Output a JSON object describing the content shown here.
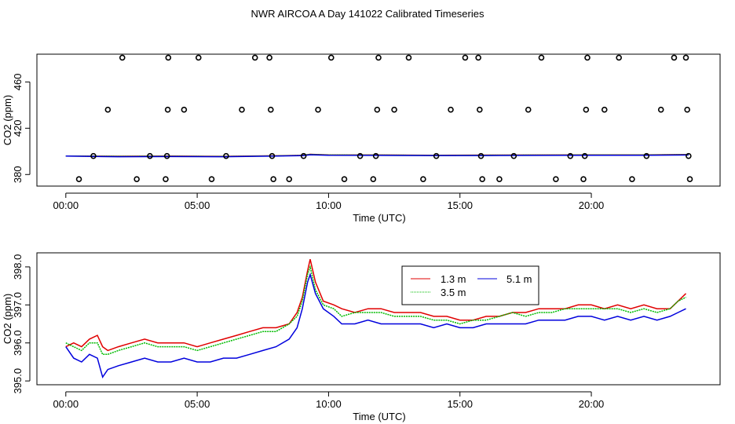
{
  "title": "NWR AIRCOA A  Day 141022  Calibrated Timeseries",
  "colors": {
    "red": "#e00000",
    "green": "#00bb00",
    "blue": "#0000dd"
  },
  "chart_data": [
    {
      "type": "scatter",
      "name": "top-panel",
      "xlabel": "Time (UTC)",
      "ylabel": "CO2 (ppm)",
      "xlim": [
        -1.1,
        24.9
      ],
      "ylim": [
        370,
        484
      ],
      "xticks": [
        0,
        5,
        10,
        15,
        20
      ],
      "xtick_labels": [
        "00:00",
        "05:00",
        "10:00",
        "15:00",
        "20:00"
      ],
      "yticks": [
        380,
        420,
        460
      ],
      "ytick_labels": [
        "380",
        "420",
        "460"
      ],
      "scatter_points": [
        [
          0.5,
          376
        ],
        [
          1.05,
          396
        ],
        [
          1.6,
          436
        ],
        [
          2.15,
          481
        ],
        [
          2.7,
          376
        ],
        [
          3.2,
          396
        ],
        [
          3.8,
          376
        ],
        [
          3.85,
          396
        ],
        [
          3.88,
          436
        ],
        [
          3.9,
          481
        ],
        [
          4.5,
          436
        ],
        [
          5.05,
          481
        ],
        [
          5.55,
          376
        ],
        [
          6.1,
          396
        ],
        [
          6.7,
          436
        ],
        [
          7.2,
          481
        ],
        [
          7.75,
          481
        ],
        [
          7.8,
          436
        ],
        [
          7.85,
          396
        ],
        [
          7.9,
          376
        ],
        [
          8.5,
          376
        ],
        [
          9.05,
          396
        ],
        [
          9.6,
          436
        ],
        [
          10.1,
          481
        ],
        [
          10.6,
          376
        ],
        [
          11.2,
          396
        ],
        [
          11.7,
          376
        ],
        [
          11.8,
          396
        ],
        [
          11.85,
          436
        ],
        [
          11.9,
          481
        ],
        [
          12.5,
          436
        ],
        [
          13.05,
          481
        ],
        [
          13.6,
          376
        ],
        [
          14.1,
          396
        ],
        [
          14.65,
          436
        ],
        [
          15.2,
          481
        ],
        [
          15.7,
          481
        ],
        [
          15.75,
          436
        ],
        [
          15.8,
          396
        ],
        [
          15.85,
          376
        ],
        [
          16.5,
          376
        ],
        [
          17.05,
          396
        ],
        [
          17.6,
          436
        ],
        [
          18.1,
          481
        ],
        [
          18.65,
          376
        ],
        [
          19.2,
          396
        ],
        [
          19.7,
          376
        ],
        [
          19.75,
          396
        ],
        [
          19.8,
          436
        ],
        [
          19.85,
          481
        ],
        [
          20.5,
          436
        ],
        [
          21.05,
          481
        ],
        [
          21.55,
          376
        ],
        [
          22.1,
          396
        ],
        [
          22.65,
          436
        ],
        [
          23.15,
          481
        ],
        [
          23.6,
          481
        ],
        [
          23.65,
          436
        ],
        [
          23.7,
          396
        ],
        [
          23.75,
          376
        ]
      ],
      "series": [
        {
          "name": "1.3 m",
          "color": "#e00000",
          "x": [
            0,
            2,
            4,
            6,
            8,
            9,
            9.3,
            10,
            12,
            14,
            16,
            18,
            20,
            22,
            23.7
          ],
          "values": [
            396,
            395.8,
            395.9,
            395.7,
            396.2,
            396.6,
            397.5,
            397,
            396.9,
            396.6,
            396.8,
            396.9,
            397,
            397,
            397.3
          ]
        },
        {
          "name": "3.5 m",
          "color": "#00bb00",
          "x": [
            0,
            2,
            4,
            6,
            8,
            9,
            9.3,
            10,
            12,
            14,
            16,
            18,
            20,
            22,
            23.7
          ],
          "values": [
            396,
            395.7,
            395.8,
            395.6,
            396.1,
            396.5,
            397.4,
            396.9,
            396.8,
            396.5,
            396.7,
            396.8,
            396.9,
            396.9,
            397.2
          ]
        },
        {
          "name": "5.1 m",
          "color": "#0000dd",
          "x": [
            0,
            2,
            4,
            6,
            8,
            9,
            9.3,
            10,
            12,
            14,
            16,
            18,
            20,
            22,
            23.7
          ],
          "values": [
            395.9,
            395.4,
            395.5,
            395.4,
            395.9,
            396.3,
            397.1,
            396.6,
            396.5,
            396.4,
            396.4,
            396.5,
            396.6,
            396.6,
            396.9
          ]
        }
      ]
    },
    {
      "type": "line",
      "name": "bottom-panel",
      "xlabel": "Time (UTC)",
      "ylabel": "CO2 (ppm)",
      "xlim": [
        -1.1,
        24.9
      ],
      "ylim": [
        394.9,
        398.37
      ],
      "xticks": [
        0,
        5,
        10,
        15,
        20
      ],
      "xtick_labels": [
        "00:00",
        "05:00",
        "10:00",
        "15:00",
        "20:00"
      ],
      "yticks": [
        395,
        396,
        397,
        398
      ],
      "ytick_labels": [
        "395.0",
        "396.0",
        "397.0",
        "398.0"
      ],
      "legend": [
        "1.3 m",
        "5.1 m",
        "3.5 m"
      ],
      "legend_position": "top-center",
      "series": [
        {
          "name": "1.3 m",
          "color": "#e00000",
          "x": [
            0,
            0.3,
            0.6,
            0.9,
            1.2,
            1.4,
            1.6,
            2,
            2.5,
            3,
            3.5,
            4,
            4.5,
            5,
            5.5,
            6,
            6.5,
            7,
            7.5,
            8,
            8.5,
            8.8,
            9,
            9.2,
            9.3,
            9.5,
            9.8,
            10.2,
            10.5,
            11,
            11.5,
            12,
            12.5,
            13,
            13.5,
            14,
            14.5,
            15,
            15.5,
            16,
            16.5,
            17,
            17.5,
            18,
            18.5,
            19,
            19.5,
            20,
            20.5,
            21,
            21.5,
            22,
            22.5,
            23,
            23.3,
            23.6
          ],
          "values": [
            395.9,
            396.0,
            395.9,
            396.1,
            396.2,
            395.9,
            395.8,
            395.9,
            396.0,
            396.1,
            396.0,
            396.0,
            396.0,
            395.9,
            396.0,
            396.1,
            396.2,
            396.3,
            396.4,
            396.4,
            396.5,
            396.8,
            397.2,
            397.9,
            398.2,
            397.6,
            397.1,
            397.0,
            396.9,
            396.8,
            396.9,
            396.9,
            396.8,
            396.8,
            396.8,
            396.7,
            396.7,
            396.6,
            396.6,
            396.7,
            396.7,
            396.8,
            396.8,
            396.9,
            396.9,
            396.9,
            397.0,
            397.0,
            396.9,
            397.0,
            396.9,
            397.0,
            396.9,
            396.9,
            397.1,
            397.3
          ]
        },
        {
          "name": "3.5 m",
          "color": "#00bb00",
          "x": [
            0,
            0.3,
            0.6,
            0.9,
            1.2,
            1.4,
            1.6,
            2,
            2.5,
            3,
            3.5,
            4,
            4.5,
            5,
            5.5,
            6,
            6.5,
            7,
            7.5,
            8,
            8.5,
            8.8,
            9,
            9.2,
            9.3,
            9.5,
            9.8,
            10.2,
            10.5,
            11,
            11.5,
            12,
            12.5,
            13,
            13.5,
            14,
            14.5,
            15,
            15.5,
            16,
            16.5,
            17,
            17.5,
            18,
            18.5,
            19,
            19.5,
            20,
            20.5,
            21,
            21.5,
            22,
            22.5,
            23,
            23.3,
            23.6
          ],
          "values": [
            396.0,
            395.9,
            395.8,
            396.0,
            396.0,
            395.7,
            395.7,
            395.8,
            395.9,
            396.0,
            395.9,
            395.9,
            395.9,
            395.8,
            395.9,
            396.0,
            396.1,
            396.2,
            396.3,
            396.3,
            396.5,
            396.7,
            397.1,
            397.8,
            398.0,
            397.4,
            397.0,
            396.9,
            396.7,
            396.8,
            396.8,
            396.8,
            396.7,
            396.7,
            396.7,
            396.6,
            396.6,
            396.5,
            396.6,
            396.6,
            396.7,
            396.8,
            396.7,
            396.8,
            396.8,
            396.9,
            396.9,
            396.9,
            396.9,
            396.9,
            396.8,
            396.9,
            396.8,
            396.9,
            397.1,
            397.2
          ]
        },
        {
          "name": "5.1 m",
          "color": "#0000dd",
          "x": [
            0,
            0.3,
            0.6,
            0.9,
            1.2,
            1.4,
            1.6,
            2,
            2.5,
            3,
            3.5,
            4,
            4.5,
            5,
            5.5,
            6,
            6.5,
            7,
            7.5,
            8,
            8.5,
            8.8,
            9,
            9.2,
            9.3,
            9.5,
            9.8,
            10.2,
            10.5,
            11,
            11.5,
            12,
            12.5,
            13,
            13.5,
            14,
            14.5,
            15,
            15.5,
            16,
            16.5,
            17,
            17.5,
            18,
            18.5,
            19,
            19.5,
            20,
            20.5,
            21,
            21.5,
            22,
            22.5,
            23,
            23.3,
            23.6
          ],
          "values": [
            395.9,
            395.6,
            395.5,
            395.7,
            395.6,
            395.1,
            395.3,
            395.4,
            395.5,
            395.6,
            395.5,
            395.5,
            395.6,
            395.5,
            395.5,
            395.6,
            395.6,
            395.7,
            395.8,
            395.9,
            396.1,
            396.4,
            396.9,
            397.6,
            397.8,
            397.3,
            396.9,
            396.7,
            396.5,
            396.5,
            396.6,
            396.5,
            396.5,
            396.5,
            396.5,
            396.4,
            396.5,
            396.4,
            396.4,
            396.5,
            396.5,
            396.5,
            396.5,
            396.6,
            396.6,
            396.6,
            396.7,
            396.7,
            396.6,
            396.7,
            396.6,
            396.7,
            396.6,
            396.7,
            396.8,
            396.9
          ]
        }
      ]
    }
  ]
}
